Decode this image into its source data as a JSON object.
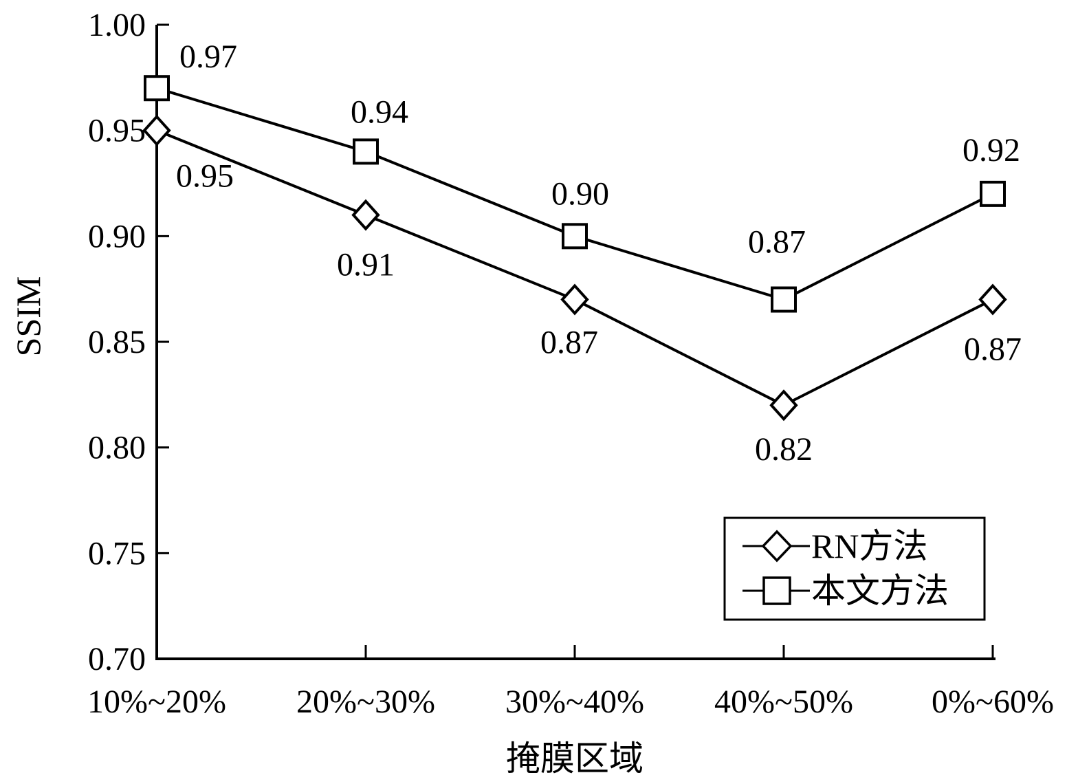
{
  "chart_data": {
    "type": "line",
    "xlabel": "掩膜区域",
    "ylabel": "SSIM",
    "categories": [
      "10%~20%",
      "20%~30%",
      "30%~40%",
      "40%~50%",
      "0%~60%"
    ],
    "ylim": [
      0.7,
      1.0
    ],
    "yticks": [
      "0.70",
      "0.75",
      "0.80",
      "0.85",
      "0.90",
      "0.95",
      "1.00"
    ],
    "grid": false,
    "legend_position": "bottom-right",
    "series": [
      {
        "name": "RN方法",
        "marker": "diamond",
        "values": [
          0.95,
          0.91,
          0.87,
          0.82,
          0.87
        ],
        "labels": [
          "0.95",
          "0.91",
          "0.87",
          "0.82",
          "0.87"
        ],
        "label_position": "below"
      },
      {
        "name": "本文方法",
        "marker": "square",
        "values": [
          0.97,
          0.94,
          0.9,
          0.87,
          0.92
        ],
        "labels": [
          "0.97",
          "0.94",
          "0.90",
          "0.87",
          "0.92"
        ],
        "label_position": "above"
      }
    ],
    "colors": {
      "line": "#000000",
      "background": "#ffffff"
    }
  }
}
